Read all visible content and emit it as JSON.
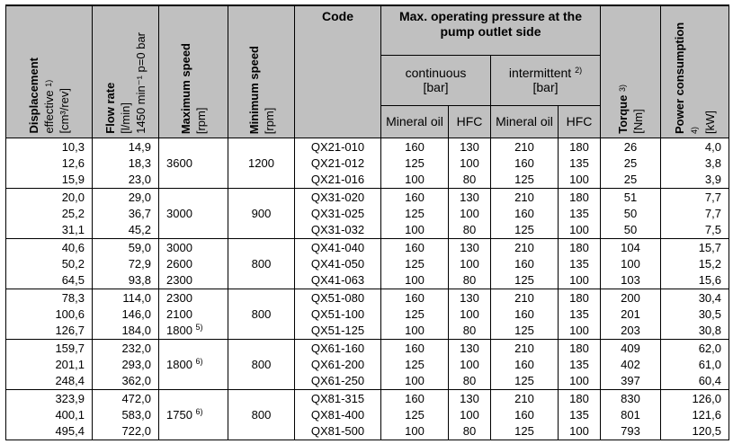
{
  "header": {
    "displacement": {
      "title": "Displacement",
      "line2": "effective",
      "sup": "1)",
      "unit": "[cm³/rev]"
    },
    "flow_rate": {
      "title": "Flow rate",
      "unit": "[l/min]",
      "cond": "1450 min⁻¹ p=0 bar"
    },
    "max_speed": {
      "title": "Maximum speed",
      "unit": "[rpm]"
    },
    "min_speed": {
      "title": "Minimum speed",
      "unit": "[rpm]"
    },
    "code": "Code",
    "pressure": "Max. operating pressure at the pump outlet side",
    "continuous": {
      "title": "continuous",
      "unit": "[bar]"
    },
    "intermittent": {
      "title": "intermittent",
      "sup": "2)",
      "unit": "[bar]"
    },
    "mineral_oil": "Mineral oil",
    "hfc": "HFC",
    "torque": {
      "title": "Torque",
      "sup": "3)",
      "unit": "[Nm]"
    },
    "power": {
      "title": "Power consumption",
      "sup": "4)",
      "unit": "[kW]"
    }
  },
  "groups": [
    {
      "displacement": [
        "10,3",
        "12,6",
        "15,9"
      ],
      "flow": [
        "14,9",
        "18,3",
        "23,0"
      ],
      "max_speed": [
        "3600"
      ],
      "max_speed_sup": "",
      "min_speed": "1200",
      "code": [
        "QX21-010",
        "QX21-012",
        "QX21-016"
      ],
      "cont_oil": [
        "160",
        "125",
        "100"
      ],
      "cont_hfc": [
        "130",
        "100",
        "80"
      ],
      "int_oil": [
        "210",
        "160",
        "125"
      ],
      "int_hfc": [
        "180",
        "135",
        "100"
      ],
      "torque": [
        "26",
        "25",
        "25"
      ],
      "power": [
        "4,0",
        "3,8",
        "3,9"
      ]
    },
    {
      "displacement": [
        "20,0",
        "25,2",
        "31,1"
      ],
      "flow": [
        "29,0",
        "36,7",
        "45,2"
      ],
      "max_speed": [
        "3000"
      ],
      "max_speed_sup": "",
      "min_speed": "900",
      "code": [
        "QX31-020",
        "QX31-025",
        "QX31-032"
      ],
      "cont_oil": [
        "160",
        "125",
        "100"
      ],
      "cont_hfc": [
        "130",
        "100",
        "80"
      ],
      "int_oil": [
        "210",
        "160",
        "125"
      ],
      "int_hfc": [
        "180",
        "135",
        "100"
      ],
      "torque": [
        "51",
        "50",
        "50"
      ],
      "power": [
        "7,7",
        "7,7",
        "7,5"
      ]
    },
    {
      "displacement": [
        "40,6",
        "50,2",
        "64,5"
      ],
      "flow": [
        "59,0",
        "72,9",
        "93,8"
      ],
      "max_speed": [
        "3000",
        "2600",
        "2300"
      ],
      "max_speed_sup": "",
      "min_speed": "800",
      "code": [
        "QX41-040",
        "QX41-050",
        "QX41-063"
      ],
      "cont_oil": [
        "160",
        "125",
        "100"
      ],
      "cont_hfc": [
        "130",
        "100",
        "80"
      ],
      "int_oil": [
        "210",
        "160",
        "125"
      ],
      "int_hfc": [
        "180",
        "135",
        "100"
      ],
      "torque": [
        "104",
        "100",
        "103"
      ],
      "power": [
        "15,7",
        "15,2",
        "15,6"
      ]
    },
    {
      "displacement": [
        "78,3",
        "100,6",
        "126,7"
      ],
      "flow": [
        "114,0",
        "146,0",
        "184,0"
      ],
      "max_speed": [
        "2300",
        "2100",
        "1800"
      ],
      "max_speed_sup": "5)",
      "min_speed": "800",
      "code": [
        "QX51-080",
        "QX51-100",
        "QX51-125"
      ],
      "cont_oil": [
        "160",
        "125",
        "100"
      ],
      "cont_hfc": [
        "130",
        "100",
        "80"
      ],
      "int_oil": [
        "210",
        "160",
        "125"
      ],
      "int_hfc": [
        "180",
        "135",
        "100"
      ],
      "torque": [
        "200",
        "201",
        "203"
      ],
      "power": [
        "30,4",
        "30,5",
        "30,8"
      ]
    },
    {
      "displacement": [
        "159,7",
        "201,1",
        "248,4"
      ],
      "flow": [
        "232,0",
        "293,0",
        "362,0"
      ],
      "max_speed": [
        "1800"
      ],
      "max_speed_sup": "6)",
      "min_speed": "800",
      "code": [
        "QX61-160",
        "QX61-200",
        "QX61-250"
      ],
      "cont_oil": [
        "160",
        "125",
        "100"
      ],
      "cont_hfc": [
        "130",
        "100",
        "80"
      ],
      "int_oil": [
        "210",
        "160",
        "125"
      ],
      "int_hfc": [
        "180",
        "135",
        "100"
      ],
      "torque": [
        "409",
        "402",
        "397"
      ],
      "power": [
        "62,0",
        "61,0",
        "60,4"
      ]
    },
    {
      "displacement": [
        "323,9",
        "400,1",
        "495,4"
      ],
      "flow": [
        "472,0",
        "583,0",
        "722,0"
      ],
      "max_speed": [
        "1750"
      ],
      "max_speed_sup": "6)",
      "min_speed": "800",
      "code": [
        "QX81-315",
        "QX81-400",
        "QX81-500"
      ],
      "cont_oil": [
        "160",
        "125",
        "100"
      ],
      "cont_hfc": [
        "130",
        "100",
        "80"
      ],
      "int_oil": [
        "210",
        "160",
        "125"
      ],
      "int_hfc": [
        "180",
        "135",
        "100"
      ],
      "torque": [
        "830",
        "801",
        "793"
      ],
      "power": [
        "126,0",
        "121,6",
        "120,5"
      ]
    }
  ]
}
